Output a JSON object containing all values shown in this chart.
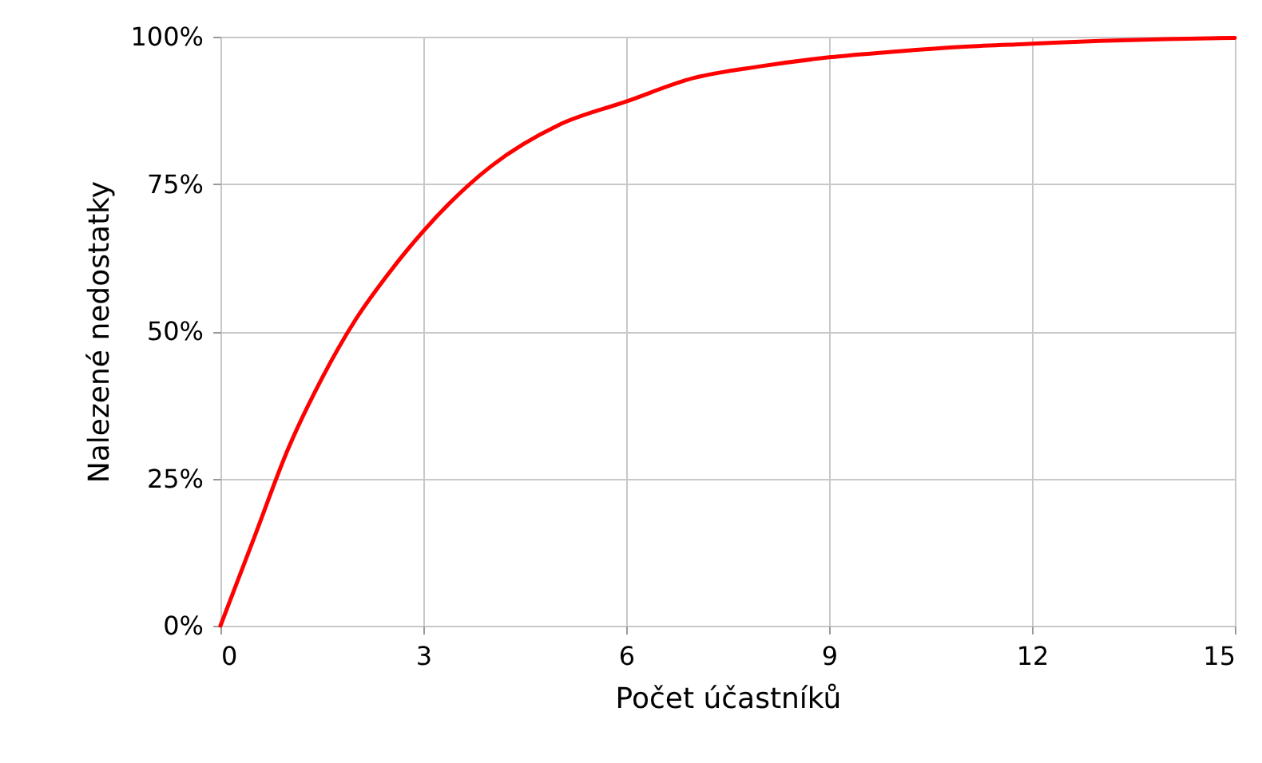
{
  "chart_data": {
    "type": "line",
    "xlabel": "Počet účastníků",
    "ylabel": "Nalezené nedostatky",
    "x": [
      0,
      0.5,
      1,
      1.5,
      2,
      2.5,
      3,
      4,
      5,
      6,
      7,
      8,
      9,
      10,
      11,
      12,
      13,
      14,
      15
    ],
    "series": [
      {
        "color": "#ff0000",
        "values": [
          0,
          15,
          30,
          42,
          52,
          60,
          67,
          78,
          85,
          89,
          93,
          95,
          96.5,
          97.5,
          98.3,
          98.8,
          99.3,
          99.6,
          99.8
        ]
      }
    ],
    "xlim": [
      0,
      15
    ],
    "xticks": [
      0,
      3,
      6,
      9,
      12,
      15
    ],
    "ylim": [
      0,
      100
    ],
    "yticks": [
      {
        "value": 0,
        "label": "0%"
      },
      {
        "value": 25,
        "label": "25%"
      },
      {
        "value": 50,
        "label": "50%"
      },
      {
        "value": 75,
        "label": "75%"
      },
      {
        "value": 100,
        "label": "100%"
      }
    ],
    "grid": true,
    "marker": "none",
    "line_style": "solid"
  }
}
